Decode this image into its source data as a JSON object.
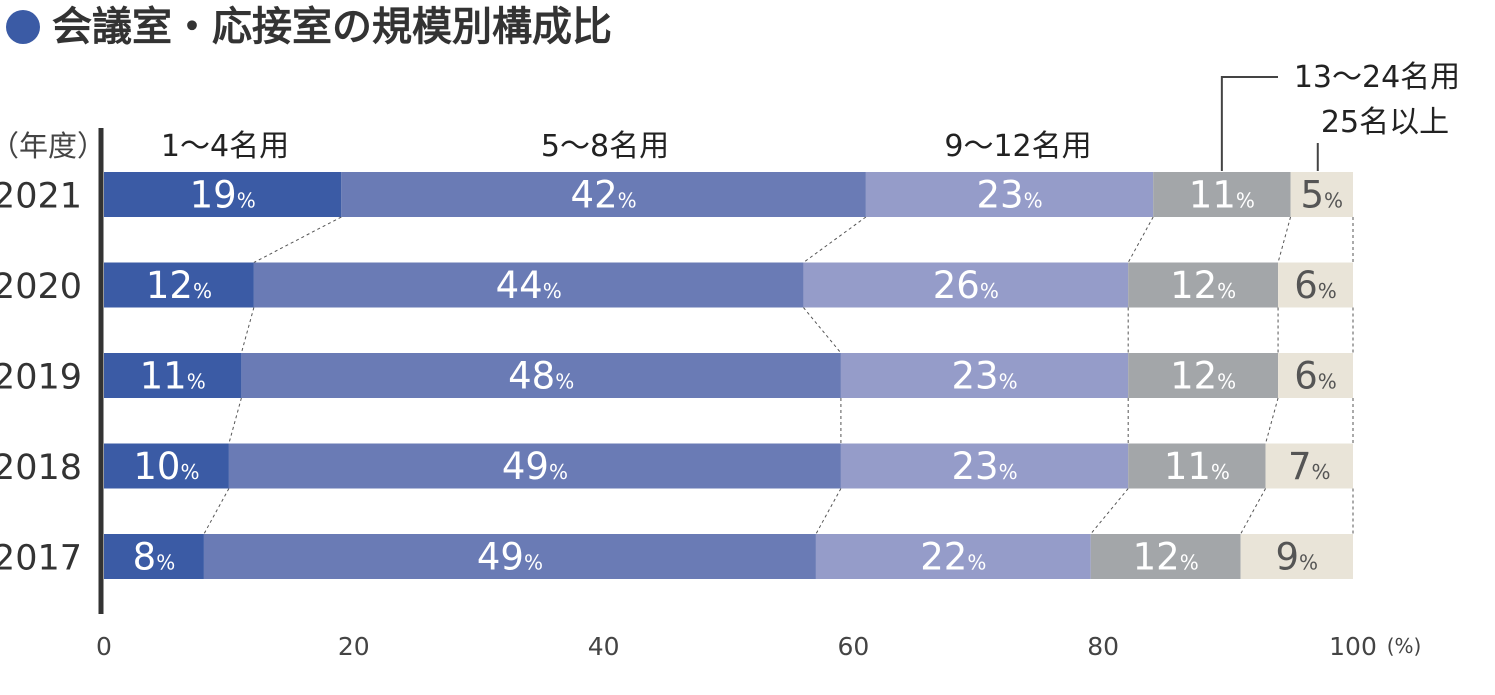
{
  "title": "会議室・応接室の規模別構成比",
  "chart_data": {
    "type": "bar",
    "orientation": "horizontal",
    "stacked": true,
    "unit_label": "（年度）",
    "x_unit_label": "(%)",
    "xlim": [
      0,
      100
    ],
    "x_ticks": [
      "0",
      "20",
      "40",
      "60",
      "80",
      "100"
    ],
    "categories": [
      "2021",
      "2020",
      "2019",
      "2018",
      "2017"
    ],
    "value_suffix": "%",
    "series": [
      {
        "name": "1〜4名用",
        "color": "#3b5ba5",
        "text_color": "#ffffff",
        "values": [
          19,
          12,
          11,
          10,
          8
        ]
      },
      {
        "name": "5〜8名用",
        "color": "#6a7bb5",
        "text_color": "#ffffff",
        "values": [
          42,
          44,
          48,
          49,
          49
        ]
      },
      {
        "name": "9〜12名用",
        "color": "#959cc9",
        "text_color": "#ffffff",
        "values": [
          23,
          26,
          23,
          23,
          22
        ]
      },
      {
        "name": "13〜24名用",
        "color": "#a3a6a9",
        "text_color": "#ffffff",
        "values": [
          11,
          12,
          12,
          11,
          12
        ]
      },
      {
        "name": "25名以上",
        "color": "#e9e4d8",
        "text_color": "#555555",
        "values": [
          5,
          6,
          6,
          7,
          9
        ]
      }
    ],
    "grid": false,
    "legend": "top"
  }
}
